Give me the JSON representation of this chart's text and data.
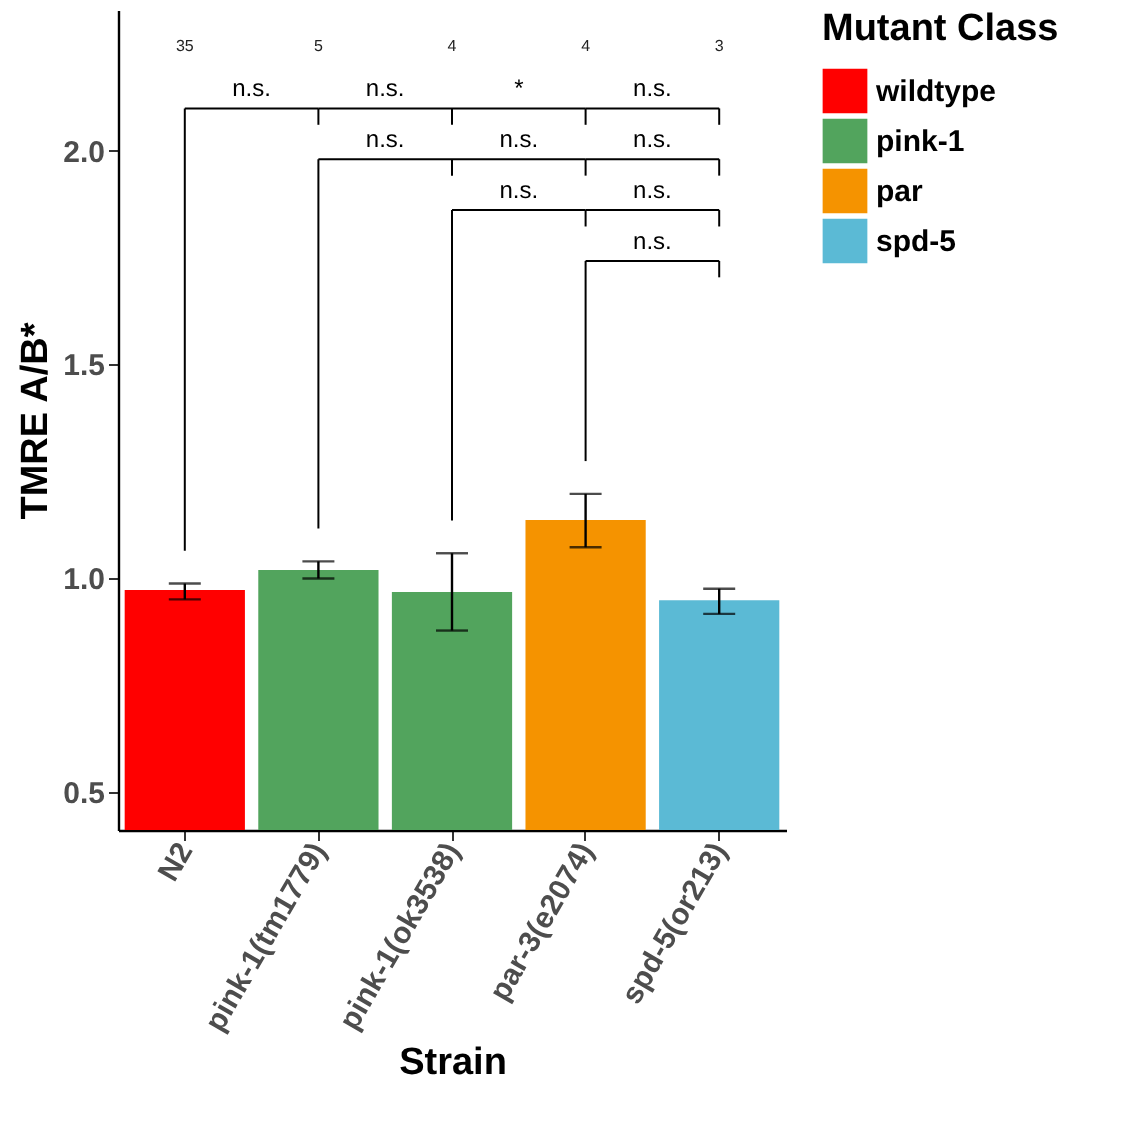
{
  "chart_data": {
    "type": "bar",
    "xlabel": "Strain",
    "ylabel": "TMRE A/B*",
    "legend_title": "Mutant Class",
    "categories": [
      "N2",
      "pink-1(tm1779)",
      "pink-1(ok3538)",
      "par-3(e2074)",
      "spd-5(or213)"
    ],
    "series": [
      {
        "name": "wildtype",
        "color": "#ff0000",
        "values": [
          0.972,
          null,
          null,
          null,
          null
        ],
        "errors": [
          [
            0.95,
            0.987
          ],
          null,
          null,
          null,
          null
        ]
      },
      {
        "name": "pink-1",
        "color": "#52a45d",
        "values": [
          null,
          1.019,
          0.967,
          null,
          null
        ],
        "errors": [
          null,
          [
            0.999,
            1.039
          ],
          [
            0.877,
            1.058
          ],
          null,
          null
        ]
      },
      {
        "name": "par",
        "color": "#f59300",
        "values": [
          null,
          null,
          null,
          1.136,
          null
        ],
        "errors": [
          null,
          null,
          null,
          [
            1.072,
            1.197
          ],
          null
        ]
      },
      {
        "name": "spd-5",
        "color": "#5bbad5",
        "values": [
          null,
          null,
          null,
          null,
          0.948
        ],
        "errors": [
          null,
          null,
          null,
          null,
          [
            0.916,
            0.975
          ]
        ]
      }
    ],
    "ylim": [
      0.41,
      2.33
    ],
    "yticks": [
      0.5,
      {
        "value": 1,
        "label": "1.0"
      },
      1.5,
      {
        "value": 2,
        "label": "2.0"
      }
    ],
    "grid": false,
    "legend": "right",
    "annotations": [
      "35",
      "5",
      "4",
      "4",
      "3",
      "n.s.",
      "n.s.",
      "*",
      "n.s.",
      "n.s.",
      "n.s.",
      "n.s.",
      "n.s.",
      "n.s.",
      "n.s."
    ]
  }
}
